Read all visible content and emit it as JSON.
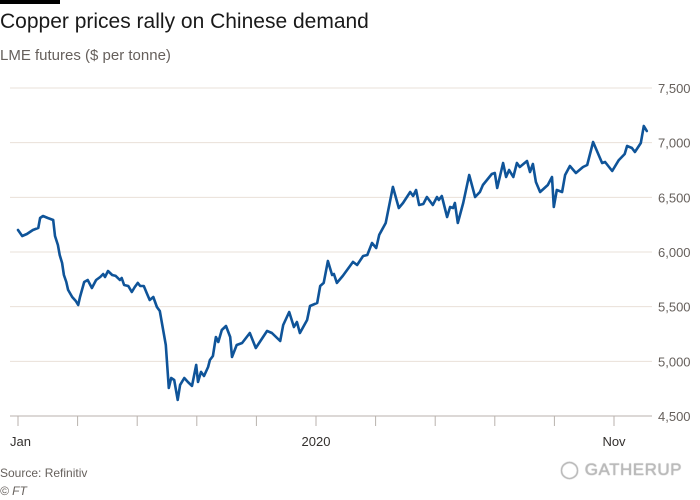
{
  "chart_data": {
    "type": "line",
    "title": "Copper prices rally on Chinese demand",
    "subtitle": "LME futures ($ per tonne)",
    "xlabel": "",
    "ylabel": "",
    "ylim": [
      4500,
      7500
    ],
    "yticks": [
      4500,
      5000,
      5500,
      6000,
      6500,
      7000,
      7500
    ],
    "ytick_labels": [
      "4,500",
      "5,000",
      "5,500",
      "6,000",
      "6,500",
      "7,000",
      "7,500"
    ],
    "xticks_count": 11,
    "xtick_labels": [
      {
        "index": 0,
        "label": "Jan"
      },
      {
        "index": 5,
        "label": "2020"
      },
      {
        "index": 10,
        "label": "Nov"
      }
    ],
    "grid": true,
    "line_color": "#0f5499",
    "series": [
      {
        "name": "LME copper futures",
        "points": [
          [
            0,
            6201
          ],
          [
            0.07,
            6146
          ],
          [
            0.15,
            6165
          ],
          [
            0.25,
            6201
          ],
          [
            0.34,
            6220
          ],
          [
            0.37,
            6311
          ],
          [
            0.42,
            6329
          ],
          [
            0.5,
            6311
          ],
          [
            0.59,
            6293
          ],
          [
            0.62,
            6146
          ],
          [
            0.67,
            6064
          ],
          [
            0.7,
            5973
          ],
          [
            0.74,
            5899
          ],
          [
            0.77,
            5790
          ],
          [
            0.81,
            5726
          ],
          [
            0.84,
            5653
          ],
          [
            0.91,
            5588
          ],
          [
            0.97,
            5552
          ],
          [
            1.01,
            5515
          ],
          [
            1.04,
            5588
          ],
          [
            1.11,
            5726
          ],
          [
            1.17,
            5744
          ],
          [
            1.24,
            5671
          ],
          [
            1.31,
            5744
          ],
          [
            1.38,
            5771
          ],
          [
            1.43,
            5799
          ],
          [
            1.46,
            5771
          ],
          [
            1.51,
            5826
          ],
          [
            1.58,
            5790
          ],
          [
            1.64,
            5781
          ],
          [
            1.71,
            5744
          ],
          [
            1.74,
            5762
          ],
          [
            1.78,
            5698
          ],
          [
            1.85,
            5689
          ],
          [
            1.91,
            5634
          ],
          [
            1.96,
            5680
          ],
          [
            2.01,
            5717
          ],
          [
            2.05,
            5689
          ],
          [
            2.11,
            5689
          ],
          [
            2.16,
            5625
          ],
          [
            2.21,
            5561
          ],
          [
            2.27,
            5588
          ],
          [
            2.33,
            5497
          ],
          [
            2.38,
            5460
          ],
          [
            2.43,
            5305
          ],
          [
            2.48,
            5149
          ],
          [
            2.53,
            4756
          ],
          [
            2.57,
            4848
          ],
          [
            2.62,
            4829
          ],
          [
            2.68,
            4647
          ],
          [
            2.72,
            4784
          ],
          [
            2.79,
            4848
          ],
          [
            2.85,
            4811
          ],
          [
            2.92,
            4775
          ],
          [
            2.99,
            4967
          ],
          [
            3.02,
            4811
          ],
          [
            3.07,
            4903
          ],
          [
            3.12,
            4866
          ],
          [
            3.19,
            4948
          ],
          [
            3.22,
            5012
          ],
          [
            3.27,
            5049
          ],
          [
            3.32,
            5223
          ],
          [
            3.36,
            5177
          ],
          [
            3.42,
            5287
          ],
          [
            3.49,
            5323
          ],
          [
            3.56,
            5223
          ],
          [
            3.59,
            5040
          ],
          [
            3.67,
            5149
          ],
          [
            3.76,
            5168
          ],
          [
            3.89,
            5259
          ],
          [
            3.99,
            5122
          ],
          [
            4.18,
            5278
          ],
          [
            4.26,
            5259
          ],
          [
            4.4,
            5186
          ],
          [
            4.45,
            5332
          ],
          [
            4.55,
            5451
          ],
          [
            4.63,
            5314
          ],
          [
            4.68,
            5360
          ],
          [
            4.73,
            5259
          ],
          [
            4.85,
            5378
          ],
          [
            4.9,
            5506
          ],
          [
            5.02,
            5534
          ],
          [
            5.07,
            5689
          ],
          [
            5.13,
            5717
          ],
          [
            5.2,
            5918
          ],
          [
            5.27,
            5790
          ],
          [
            5.3,
            5799
          ],
          [
            5.35,
            5717
          ],
          [
            5.45,
            5781
          ],
          [
            5.62,
            5909
          ],
          [
            5.69,
            5881
          ],
          [
            5.79,
            5963
          ],
          [
            5.86,
            5973
          ],
          [
            5.94,
            6082
          ],
          [
            6.01,
            6037
          ],
          [
            6.06,
            6156
          ],
          [
            6.17,
            6265
          ],
          [
            6.29,
            6595
          ],
          [
            6.39,
            6402
          ],
          [
            6.46,
            6448
          ],
          [
            6.58,
            6549
          ],
          [
            6.63,
            6512
          ],
          [
            6.68,
            6567
          ],
          [
            6.73,
            6430
          ],
          [
            6.8,
            6439
          ],
          [
            6.86,
            6503
          ],
          [
            6.96,
            6430
          ],
          [
            7.03,
            6503
          ],
          [
            7.06,
            6476
          ],
          [
            7.11,
            6512
          ],
          [
            7.2,
            6320
          ],
          [
            7.25,
            6412
          ],
          [
            7.3,
            6402
          ],
          [
            7.33,
            6448
          ],
          [
            7.38,
            6265
          ],
          [
            7.47,
            6448
          ],
          [
            7.57,
            6704
          ],
          [
            7.67,
            6503
          ],
          [
            7.75,
            6549
          ],
          [
            7.8,
            6613
          ],
          [
            7.95,
            6713
          ],
          [
            8,
            6723
          ],
          [
            8.04,
            6585
          ],
          [
            8.14,
            6814
          ],
          [
            8.19,
            6686
          ],
          [
            8.24,
            6750
          ],
          [
            8.31,
            6686
          ],
          [
            8.37,
            6814
          ],
          [
            8.42,
            6777
          ],
          [
            8.54,
            6832
          ],
          [
            8.59,
            6732
          ],
          [
            8.64,
            6805
          ],
          [
            8.69,
            6640
          ],
          [
            8.76,
            6549
          ],
          [
            8.89,
            6613
          ],
          [
            8.96,
            6686
          ],
          [
            8.99,
            6412
          ],
          [
            9.04,
            6567
          ],
          [
            9.13,
            6549
          ],
          [
            9.18,
            6704
          ],
          [
            9.26,
            6787
          ],
          [
            9.36,
            6723
          ],
          [
            9.48,
            6777
          ],
          [
            9.55,
            6796
          ],
          [
            9.65,
            7006
          ],
          [
            9.8,
            6814
          ],
          [
            9.85,
            6823
          ],
          [
            9.97,
            6741
          ],
          [
            10.08,
            6841
          ],
          [
            10.18,
            6896
          ],
          [
            10.22,
            6970
          ],
          [
            10.3,
            6951
          ],
          [
            10.35,
            6915
          ],
          [
            10.45,
            6997
          ],
          [
            10.5,
            7152
          ],
          [
            10.55,
            7107
          ]
        ]
      }
    ],
    "source": "Source: Refinitiv",
    "credit": "© FT"
  },
  "watermark": "GATHERUP"
}
